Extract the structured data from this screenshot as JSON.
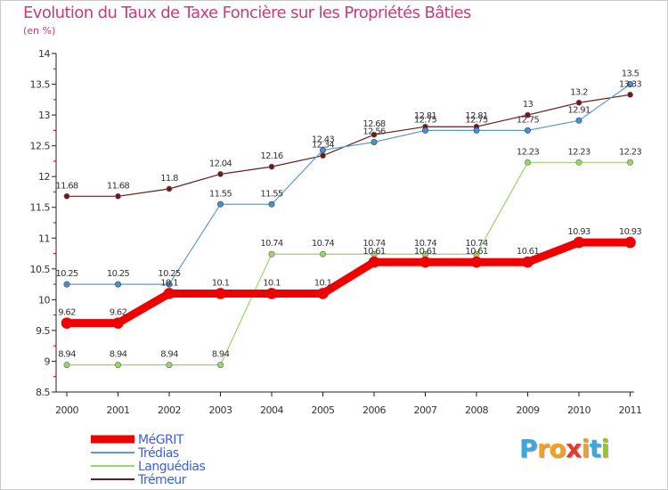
{
  "header": {
    "title": "Evolution du Taux de Taxe Foncière sur les Propriétés Bâties",
    "subtitle": "(en %)"
  },
  "logo": {
    "letters": [
      "P",
      "r",
      "o",
      "x",
      "i",
      "t",
      "i"
    ],
    "colors": [
      "#3aa7de",
      "#f0a21e",
      "#f0a21e",
      "#e23b2e",
      "#f0a21e",
      "#3aa7de",
      "#9ac41f"
    ]
  },
  "chart_data": {
    "type": "line",
    "title": "Evolution du Taux de Taxe Foncière sur les Propriétés Bâties",
    "ylabel": "(en %)",
    "xlabel": "",
    "x": [
      "2000",
      "2001",
      "2002",
      "2003",
      "2004",
      "2005",
      "2006",
      "2007",
      "2008",
      "2009",
      "2010",
      "2011"
    ],
    "ylim": [
      8.5,
      14
    ],
    "yticks": [
      "8.5",
      "9",
      "9.5",
      "10",
      "10.5",
      "11",
      "11.5",
      "12",
      "12.5",
      "13",
      "13.5",
      "14"
    ],
    "grid": false,
    "legend_position": "bottom-left",
    "series": [
      {
        "name": "Trémeur",
        "color": "#7a2a2a",
        "values": [
          11.68,
          11.68,
          11.8,
          12.04,
          12.16,
          12.34,
          12.68,
          12.81,
          12.81,
          13,
          13.2,
          13.33
        ],
        "labels": [
          "11.68",
          "11.68",
          "11.8",
          "12.04",
          "12.16",
          "12.34",
          "12.68",
          "12.81",
          "12.81",
          "13",
          "13.2",
          "13.33"
        ]
      },
      {
        "name": "Languédias",
        "color": "#9bd46a",
        "values": [
          8.94,
          8.94,
          8.94,
          8.94,
          10.74,
          10.74,
          10.74,
          10.74,
          10.74,
          12.23,
          12.23,
          12.23
        ],
        "labels": [
          "8.94",
          "8.94",
          "8.94",
          "8.94",
          "10.74",
          "10.74",
          "10.74",
          "10.74",
          "10.74",
          "12.23",
          "12.23",
          "12.23"
        ]
      },
      {
        "name": "Trédias",
        "color": "#5e9ccf",
        "values": [
          10.25,
          10.25,
          10.25,
          11.55,
          11.55,
          12.43,
          12.56,
          12.75,
          12.75,
          12.75,
          12.91,
          13.5
        ],
        "labels": [
          "10.25",
          "10.25",
          "10.25",
          "11.55",
          "11.55",
          "12.43",
          "12.56",
          "12.75",
          "12.75",
          "12.75",
          "12.91",
          "13.5"
        ]
      },
      {
        "name": "MéGRIT",
        "color": "#f00000",
        "values": [
          9.62,
          9.62,
          10.1,
          10.1,
          10.1,
          10.1,
          10.61,
          10.61,
          10.61,
          10.61,
          10.93,
          10.93
        ],
        "labels": [
          "9.62",
          "9.62",
          "10.1",
          "10.1",
          "10.1",
          "10.1",
          "10.61",
          "10.61",
          "10.61",
          "10.61",
          "10.93",
          "10.93"
        ]
      }
    ],
    "legend": [
      "MéGRIT",
      "Trédias",
      "Languédias",
      "Trémeur"
    ]
  }
}
